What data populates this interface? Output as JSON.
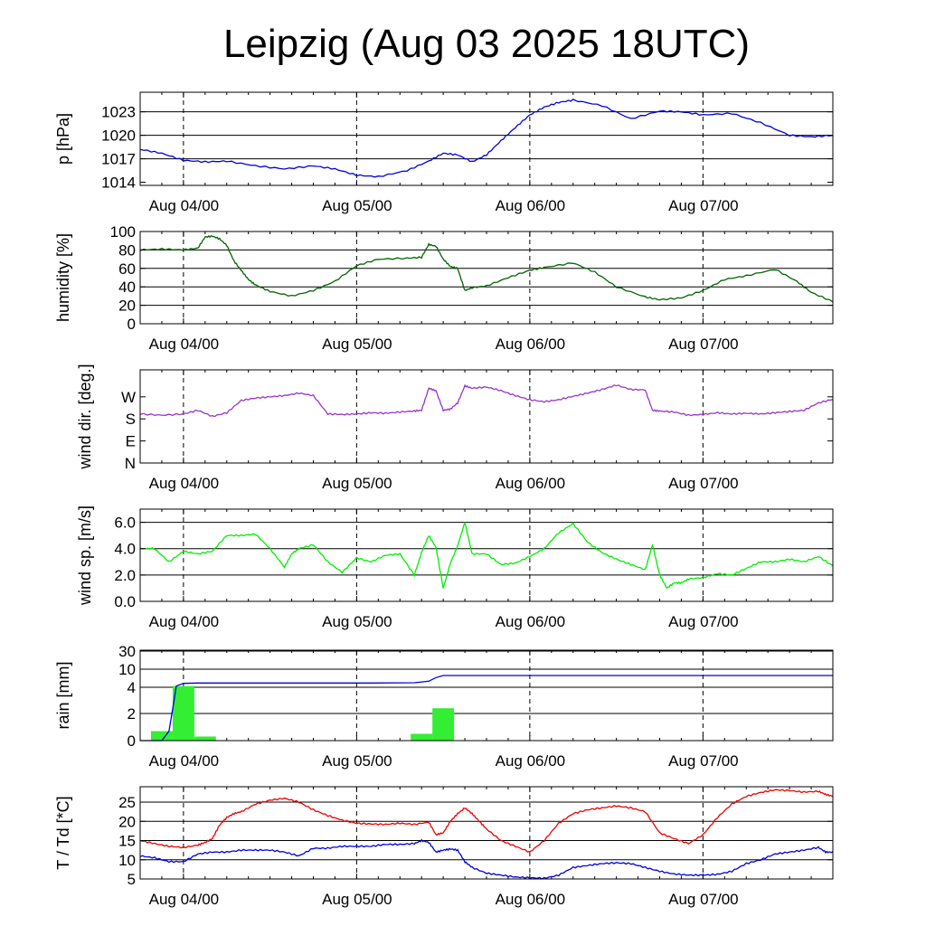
{
  "title": "Leipzig (Aug 03 2025 18UTC)",
  "chart_data": [
    {
      "type": "line",
      "ylabel": "p [hPa]",
      "ylim": [
        1013.6,
        1025.5
      ],
      "yticks": [
        {
          "v": 1014,
          "label": "1014"
        },
        {
          "v": 1017,
          "label": "1017"
        },
        {
          "v": 1020,
          "label": "1020"
        },
        {
          "v": 1023,
          "label": "1023"
        }
      ],
      "hgrid": [
        1017,
        1020,
        1023
      ],
      "xticks": [
        "Aug 04/00",
        "Aug 05/00",
        "Aug 06/00",
        "Aug 07/00"
      ],
      "series": [
        {
          "color": "#0000dd",
          "x": [
            0,
            3,
            6,
            9,
            12,
            16,
            20,
            24,
            27,
            30,
            33,
            37,
            40,
            42,
            44,
            46,
            48,
            50,
            52,
            54,
            56,
            58,
            60,
            64,
            68,
            72,
            75,
            78,
            82,
            86,
            90,
            93,
            96
          ],
          "y": [
            1018.2,
            1017.7,
            1016.8,
            1016.6,
            1016.7,
            1016.1,
            1015.7,
            1016.1,
            1015.7,
            1014.9,
            1014.7,
            1015.5,
            1016.7,
            1017.7,
            1017.5,
            1016.6,
            1017.5,
            1019.3,
            1021.0,
            1022.6,
            1023.6,
            1024.2,
            1024.5,
            1023.8,
            1022.1,
            1023.1,
            1023.0,
            1022.6,
            1022.8,
            1021.6,
            1020.0,
            1019.8,
            1020.0
          ]
        }
      ]
    },
    {
      "type": "line",
      "ylabel": "humidity [%]",
      "ylim": [
        0,
        100
      ],
      "yticks": [
        {
          "v": 0,
          "label": "0"
        },
        {
          "v": 20,
          "label": "20"
        },
        {
          "v": 40,
          "label": "40"
        },
        {
          "v": 60,
          "label": "60"
        },
        {
          "v": 80,
          "label": "80"
        },
        {
          "v": 100,
          "label": "100"
        }
      ],
      "hgrid": [
        20,
        40,
        60,
        80
      ],
      "xticks": [
        "Aug 04/00",
        "Aug 05/00",
        "Aug 06/00",
        "Aug 07/00"
      ],
      "series": [
        {
          "color": "#006400",
          "x": [
            0,
            3,
            6,
            8,
            9,
            10,
            11,
            12,
            13,
            14,
            15,
            16,
            18,
            21,
            24,
            27,
            30,
            33,
            37,
            39,
            40,
            41,
            42,
            43,
            44,
            45,
            46,
            48,
            51,
            54,
            56,
            60,
            63,
            66,
            70,
            72,
            75,
            78,
            81,
            84,
            88,
            91,
            93,
            96
          ],
          "y": [
            80,
            81,
            80,
            82,
            94,
            95,
            92,
            85,
            68,
            58,
            48,
            42,
            35,
            30,
            36,
            46,
            63,
            70,
            71,
            72,
            86,
            84,
            70,
            62,
            60,
            36,
            39,
            41,
            50,
            58,
            61,
            66,
            56,
            40,
            29,
            26,
            28,
            36,
            48,
            52,
            59,
            46,
            34,
            24
          ]
        }
      ]
    },
    {
      "type": "line",
      "ylabel": "wind dir. [deg.]",
      "ylim": [
        0,
        380
      ],
      "yticks": [
        {
          "v": 0,
          "label": "N"
        },
        {
          "v": 90,
          "label": "E"
        },
        {
          "v": 180,
          "label": "S"
        },
        {
          "v": 270,
          "label": "W"
        }
      ],
      "hgrid": [],
      "xticks": [
        "Aug 04/00",
        "Aug 05/00",
        "Aug 06/00",
        "Aug 07/00"
      ],
      "series": [
        {
          "color": "#9933cc",
          "x": [
            0,
            3,
            6,
            8,
            10,
            12,
            14,
            16,
            18,
            20,
            22,
            24,
            26,
            28,
            30,
            32,
            34,
            36,
            38,
            39,
            40,
            41,
            42,
            43,
            44,
            45,
            46,
            48,
            50,
            52,
            54,
            56,
            58,
            60,
            62,
            64,
            66,
            68,
            70,
            71,
            72,
            74,
            76,
            78,
            80,
            82,
            84,
            86,
            88,
            90,
            92,
            94,
            96
          ],
          "y": [
            200,
            195,
            200,
            215,
            190,
            205,
            255,
            265,
            270,
            275,
            285,
            275,
            200,
            198,
            200,
            205,
            203,
            208,
            212,
            215,
            305,
            295,
            215,
            220,
            245,
            315,
            305,
            310,
            295,
            275,
            258,
            250,
            258,
            272,
            285,
            300,
            318,
            300,
            298,
            215,
            212,
            208,
            195,
            198,
            205,
            200,
            203,
            200,
            205,
            210,
            215,
            245,
            260
          ]
        }
      ]
    },
    {
      "type": "line",
      "ylabel": "wind sp. [m/s]",
      "ylim": [
        0,
        7
      ],
      "yticks": [
        {
          "v": 0,
          "label": "0.0"
        },
        {
          "v": 2,
          "label": "2.0"
        },
        {
          "v": 4,
          "label": "4.0"
        },
        {
          "v": 6,
          "label": "6.0"
        }
      ],
      "hgrid": [
        2,
        4,
        6
      ],
      "xticks": [
        "Aug 04/00",
        "Aug 05/00",
        "Aug 06/00",
        "Aug 07/00"
      ],
      "series": [
        {
          "color": "#00ee00",
          "x": [
            0,
            2,
            4,
            6,
            8,
            10,
            12,
            14,
            16,
            18,
            20,
            21,
            22,
            24,
            26,
            28,
            30,
            32,
            34,
            36,
            38,
            39,
            40,
            41,
            42,
            43,
            44,
            45,
            46,
            48,
            50,
            52,
            54,
            56,
            58,
            60,
            62,
            64,
            66,
            68,
            70,
            71,
            72,
            73,
            74,
            75,
            76,
            78,
            80,
            82,
            84,
            86,
            88,
            90,
            92,
            94,
            96
          ],
          "y": [
            4.0,
            4.0,
            3.0,
            3.8,
            3.6,
            3.8,
            5.0,
            5.0,
            5.1,
            4.0,
            2.6,
            3.6,
            4.0,
            4.3,
            3.0,
            2.2,
            3.3,
            3.0,
            3.5,
            3.6,
            2.0,
            3.7,
            5.0,
            4.1,
            1.0,
            2.9,
            4.2,
            6.0,
            3.6,
            3.6,
            2.8,
            2.9,
            3.4,
            4.0,
            5.2,
            5.9,
            4.5,
            3.7,
            3.2,
            2.8,
            2.4,
            4.3,
            2.0,
            1.0,
            1.4,
            1.4,
            1.7,
            1.8,
            2.1,
            2.0,
            2.5,
            3.0,
            3.0,
            3.2,
            3.0,
            3.4,
            2.7
          ]
        }
      ]
    },
    {
      "type": "bar",
      "ylabel": "rain [mm]",
      "ylim": [
        0,
        30
      ],
      "yticks": [
        {
          "v": 0,
          "label": "0"
        },
        {
          "v": 2,
          "label": "2"
        },
        {
          "v": 4,
          "label": "4"
        },
        {
          "v": 10,
          "label": "10"
        },
        {
          "v": 30,
          "label": "30"
        }
      ],
      "hgrid": [
        2,
        4,
        10,
        30
      ],
      "xticks": [
        "Aug 04/00",
        "Aug 05/00",
        "Aug 06/00",
        "Aug 07/00"
      ],
      "bar_color": "#33ee33",
      "bars": [
        {
          "x0": 1.5,
          "x1": 4.5,
          "v": 0.7
        },
        {
          "x0": 4.5,
          "x1": 7.5,
          "v": 4.4
        },
        {
          "x0": 7.5,
          "x1": 10.5,
          "v": 0.3
        },
        {
          "x0": 37.5,
          "x1": 40.5,
          "v": 0.5
        },
        {
          "x0": 40.5,
          "x1": 43.5,
          "v": 2.4
        }
      ],
      "series": [
        {
          "color": "#0000dd",
          "x": [
            0,
            3,
            4,
            4.7,
            5,
            6,
            8,
            16,
            24,
            32,
            38,
            40,
            41,
            42,
            44,
            48,
            60,
            72,
            84,
            96
          ],
          "y": [
            0,
            0,
            0.7,
            3.0,
            4.4,
            5.3,
            5.4,
            5.4,
            5.4,
            5.4,
            5.5,
            6.0,
            7.2,
            7.9,
            7.9,
            7.9,
            7.9,
            7.9,
            7.9,
            7.9
          ]
        }
      ]
    },
    {
      "type": "line",
      "ylabel": "T / Td [*C]",
      "ylim": [
        5,
        29
      ],
      "yticks": [
        {
          "v": 5,
          "label": "5"
        },
        {
          "v": 10,
          "label": "10"
        },
        {
          "v": 15,
          "label": "15"
        },
        {
          "v": 20,
          "label": "20"
        },
        {
          "v": 25,
          "label": "25"
        }
      ],
      "hgrid": [
        10,
        15,
        20,
        25
      ],
      "xticks": [
        "Aug 04/00",
        "Aug 05/00",
        "Aug 06/00",
        "Aug 07/00"
      ],
      "series": [
        {
          "color": "#ee0000",
          "x": [
            0,
            2,
            4,
            6,
            8,
            9,
            10,
            11,
            12,
            13,
            14,
            16,
            18,
            20,
            22,
            24,
            26,
            28,
            30,
            32,
            34,
            36,
            38,
            40,
            41,
            42,
            43,
            44,
            45,
            46,
            47,
            48,
            50,
            52,
            54,
            56,
            58,
            60,
            62,
            64,
            66,
            68,
            70,
            72,
            74,
            76,
            78,
            80,
            82,
            84,
            86,
            88,
            90,
            92,
            94,
            95,
            96
          ],
          "y": [
            15,
            14.2,
            13.5,
            13.2,
            13.8,
            14.5,
            15.5,
            19,
            21,
            22,
            22.5,
            24.5,
            25.5,
            26,
            25,
            23,
            21.5,
            20.3,
            19.5,
            19.3,
            19.2,
            19.5,
            19.2,
            19.8,
            16.5,
            17,
            20,
            22,
            23.5,
            22,
            20,
            18,
            15,
            13.5,
            12,
            15,
            19.5,
            22,
            23,
            23.5,
            24,
            23.5,
            22.5,
            17,
            15.5,
            14.2,
            16.5,
            21,
            24.5,
            26.5,
            27.5,
            28.2,
            28,
            27.6,
            27.8,
            27,
            26.5
          ]
        },
        {
          "color": "#0000dd",
          "x": [
            0,
            2,
            4,
            6,
            8,
            10,
            12,
            14,
            16,
            18,
            20,
            22,
            24,
            26,
            28,
            30,
            32,
            34,
            36,
            38,
            39,
            40,
            41,
            42,
            43,
            44,
            45,
            46,
            48,
            50,
            52,
            54,
            56,
            58,
            60,
            62,
            64,
            66,
            68,
            70,
            72,
            74,
            76,
            78,
            80,
            82,
            84,
            86,
            88,
            90,
            92,
            94,
            95,
            96
          ],
          "y": [
            11,
            10.5,
            9.5,
            9.5,
            11.5,
            12,
            12,
            12.5,
            12.5,
            12.5,
            12,
            11,
            13,
            13,
            13.5,
            13.5,
            13.5,
            14,
            14,
            14.2,
            15,
            14.5,
            12,
            12.5,
            12.8,
            12.5,
            9.5,
            8,
            6.5,
            6,
            5.5,
            5.3,
            5.2,
            6,
            8,
            8.5,
            9,
            9.2,
            9,
            8,
            7,
            6.3,
            6,
            6,
            6.2,
            7,
            9,
            10,
            11.5,
            12,
            12.5,
            13.2,
            12,
            12
          ]
        }
      ]
    }
  ]
}
